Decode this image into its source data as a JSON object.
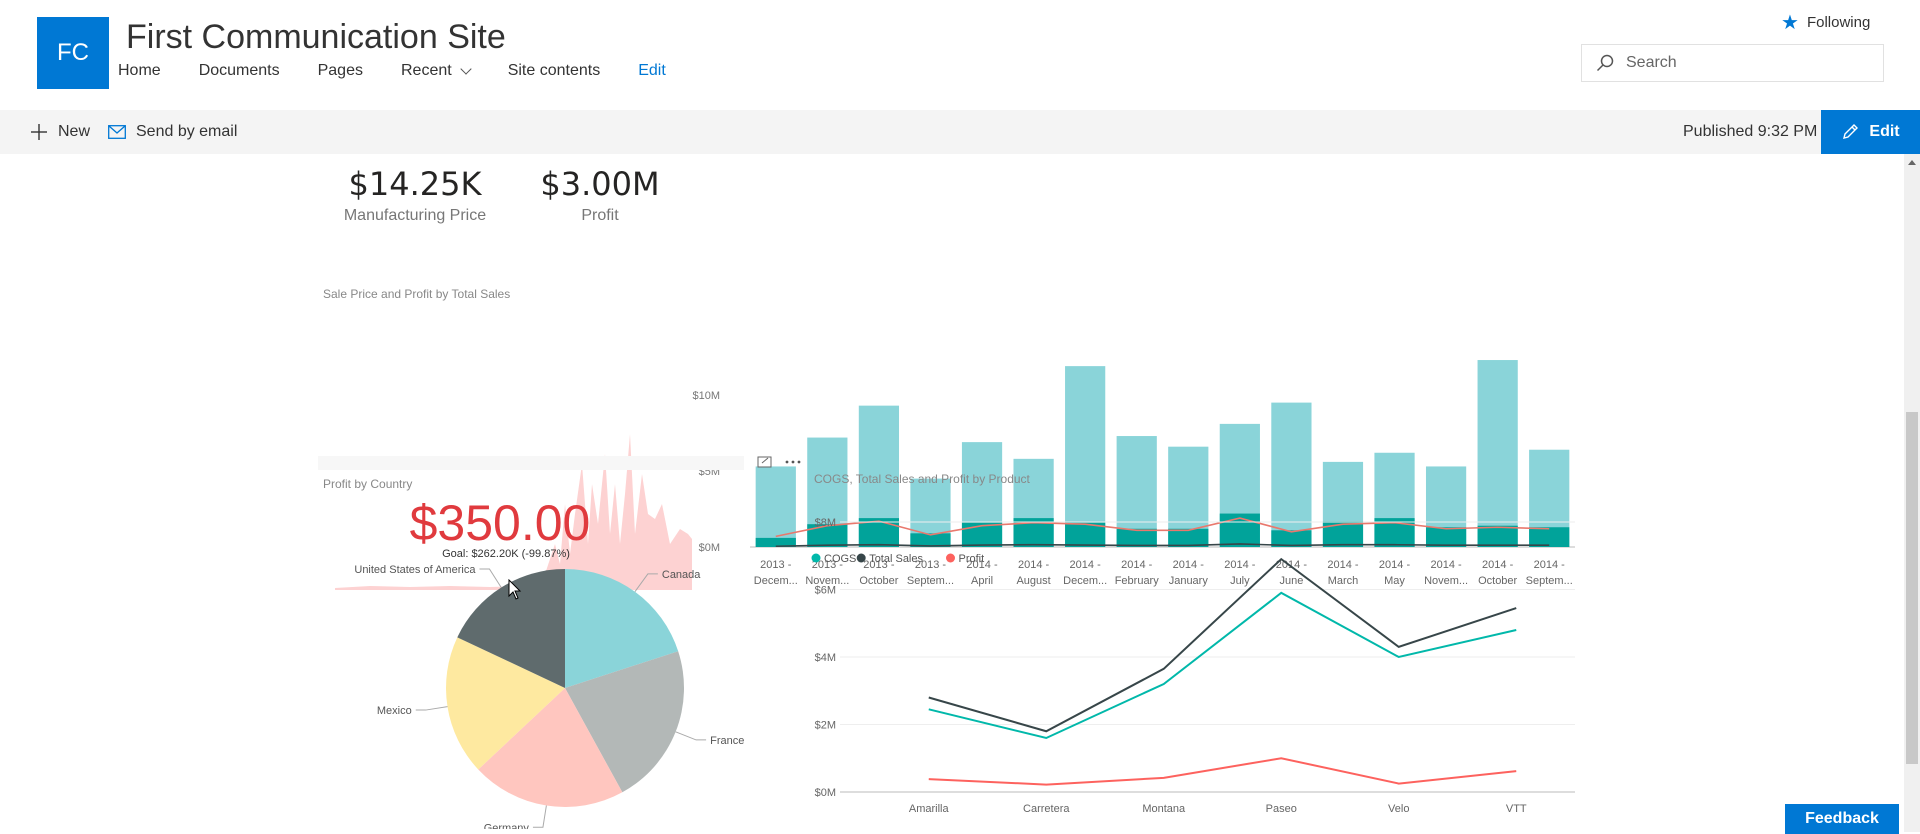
{
  "site": {
    "logo_initials": "FC",
    "title": "First Communication Site"
  },
  "nav": {
    "home": "Home",
    "documents": "Documents",
    "pages": "Pages",
    "recent": "Recent",
    "site_contents": "Site contents",
    "edit": "Edit"
  },
  "follow": {
    "label": "Following",
    "icon": "star-icon"
  },
  "search": {
    "placeholder": "Search"
  },
  "command_bar": {
    "new_label": "New",
    "send_label": "Send by email",
    "published": "Published 9:32 PM",
    "edit_label": "Edit"
  },
  "kpis": [
    {
      "value": "$14.25K",
      "label": "Manufacturing Price"
    },
    {
      "value": "$3.00M",
      "label": "Profit"
    }
  ],
  "gauge_tile": {
    "title": "Sale Price and Profit by Total Sales",
    "value": "$350.00",
    "goal": "Goal: $262.20K (-99.87%)"
  },
  "pie_tile": {
    "title": "Profit by Country"
  },
  "line_tile": {
    "title": "COGS, Total Sales and Profit by Product"
  },
  "feedback_label": "Feedback",
  "colors": {
    "accent": "#0078d4",
    "teal": "#01b8aa",
    "teal_light": "#8ad4d9",
    "dark": "#374649",
    "red": "#fd625e"
  },
  "chart_data": [
    {
      "type": "bar",
      "categories": [
        "2013 - Decem...",
        "2013 - Novem...",
        "2013 - October",
        "2013 - Septem...",
        "2014 - April",
        "2014 - August",
        "2014 - Decem...",
        "2014 - February",
        "2014 - January",
        "2014 - July",
        "2014 - June",
        "2014 - March",
        "2014 - May",
        "2014 - Novem...",
        "2014 - October",
        "2014 - Septem..."
      ],
      "series": [
        {
          "values": [
            5.3,
            7.2,
            9.3,
            4.5,
            6.9,
            5.8,
            11.9,
            7.3,
            6.6,
            8.1,
            9.5,
            5.6,
            6.2,
            5.3,
            12.3,
            6.4
          ]
        },
        {
          "values": [
            0.6,
            1.5,
            1.9,
            0.9,
            1.6,
            1.9,
            1.6,
            1.2,
            1.2,
            2.2,
            1.1,
            1.7,
            1.9,
            1.3,
            1.4,
            1.3
          ]
        },
        {
          "values": [
            0.7,
            1.4,
            1.7,
            0.8,
            1.4,
            1.6,
            1.5,
            1.1,
            1.1,
            1.9,
            1.0,
            1.5,
            1.6,
            1.2,
            1.3,
            1.2
          ]
        },
        {
          "values": [
            0.05,
            0.12,
            0.15,
            0.07,
            0.13,
            0.15,
            0.13,
            0.1,
            0.1,
            0.2,
            0.1,
            0.15,
            0.15,
            0.12,
            0.12,
            0.12
          ]
        }
      ],
      "yticks": [
        "$0M",
        "$5M",
        "$10M"
      ],
      "ylim": [
        0,
        12.5
      ]
    },
    {
      "type": "pie",
      "categories": [
        "Canada",
        "France",
        "Germany",
        "Mexico",
        "United States of America"
      ],
      "values": [
        20,
        22,
        21,
        19,
        18
      ],
      "colors": [
        "#8ad4d9",
        "#b3b8b7",
        "#ffc6bf",
        "#fee9a0",
        "#5f6b6d"
      ]
    },
    {
      "type": "line",
      "categories": [
        "Amarilla",
        "Carretera",
        "Montana",
        "Paseo",
        "Velo",
        "VTT"
      ],
      "series": [
        {
          "name": "COGS",
          "values": [
            2.45,
            1.6,
            3.2,
            5.9,
            4.0,
            4.8
          ],
          "color": "#01b8aa"
        },
        {
          "name": "Total Sales",
          "values": [
            2.8,
            1.8,
            3.65,
            6.9,
            4.3,
            5.45
          ],
          "color": "#374649"
        },
        {
          "name": "Profit",
          "values": [
            0.38,
            0.22,
            0.42,
            1.0,
            0.25,
            0.62
          ],
          "color": "#fd625e"
        }
      ],
      "yticks": [
        "$0M",
        "$2M",
        "$4M",
        "$6M",
        "$8M"
      ],
      "ylim": [
        0,
        8
      ]
    }
  ]
}
